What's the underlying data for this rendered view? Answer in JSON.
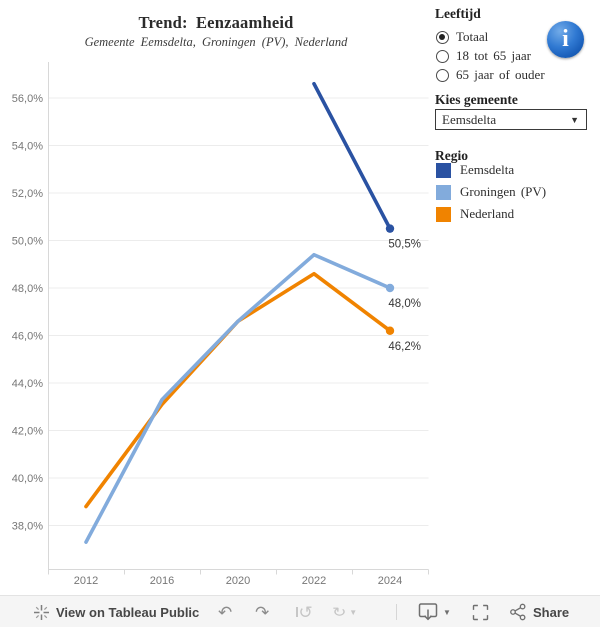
{
  "chart_data": {
    "type": "line",
    "title": "Trend: Eenzaamheid",
    "subtitle": "Gemeente Eemsdelta, Groningen (PV), Nederland",
    "categories": [
      "2012",
      "2016",
      "2020",
      "2022",
      "2024"
    ],
    "series": [
      {
        "name": "Nederland",
        "color": "#f08300",
        "values": [
          38.8,
          43.1,
          46.6,
          48.6,
          46.2
        ],
        "end_label": "46,2%"
      },
      {
        "name": "Groningen (PV)",
        "color": "#82abdc",
        "values": [
          37.3,
          43.3,
          46.6,
          49.4,
          48.0
        ],
        "end_label": "48,0%"
      },
      {
        "name": "Eemsdelta",
        "color": "#2a52a2",
        "values": [
          null,
          null,
          null,
          56.6,
          50.5
        ],
        "end_label": "50,5%"
      }
    ],
    "ytick_values": [
      38,
      40,
      42,
      44,
      46,
      48,
      50,
      52,
      54,
      56
    ],
    "ytick_labels": [
      "38,0%",
      "40,0%",
      "42,0%",
      "44,0%",
      "46,0%",
      "48,0%",
      "50,0%",
      "52,0%",
      "54,0%",
      "56,0%"
    ],
    "ylim": [
      36.2,
      57.5
    ],
    "grid": true,
    "xlabel": "",
    "ylabel": "",
    "legend_position": "right-panel",
    "end_markers": "circle"
  },
  "panel": {
    "leeftijd": {
      "label": "Leeftijd",
      "options": [
        {
          "label": "Totaal",
          "selected": true
        },
        {
          "label": "18 tot 65 jaar",
          "selected": false
        },
        {
          "label": "65 jaar of ouder",
          "selected": false
        }
      ]
    },
    "gemeente": {
      "label": "Kies gemeente",
      "value": "Eemsdelta"
    },
    "legend": {
      "label": "Regio",
      "items": [
        {
          "label": "Eemsdelta",
          "color": "#2a52a2"
        },
        {
          "label": "Groningen (PV)",
          "color": "#82abdc"
        },
        {
          "label": "Nederland",
          "color": "#f08300"
        }
      ]
    },
    "icons": {
      "info": "info-icon",
      "dropdown_caret": "▼"
    }
  },
  "toolbar": {
    "view_label": "View on Tableau Public",
    "share_label": "Share",
    "icons": {
      "logo": "tableau-logo",
      "undo": "↶",
      "redo": "↷",
      "replay": "↺",
      "speed": "↻",
      "download": "download-monitor-arrow",
      "fullscreen": "fullscreen-brackets",
      "share": "share-nodes"
    }
  },
  "colors": {
    "eemsdelta": "#2a52a2",
    "groningen": "#82abdc",
    "nederland": "#f08300",
    "grid": "#ececec",
    "axis": "#d8d8d8",
    "tick_text": "#767676",
    "label_text": "#363636",
    "info_blue": "#1a5fba"
  }
}
